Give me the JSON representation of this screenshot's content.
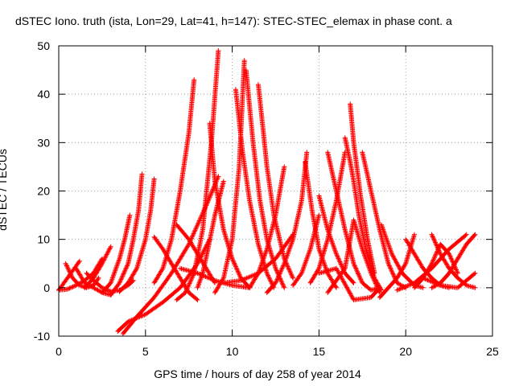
{
  "chart_data": {
    "type": "scatter",
    "title": "dSTEC Iono. truth (ista, Lon=29, Lat=41, h=147): STEC-STEC_elemax in phase cont. a",
    "xlabel": "GPS time / hours of day 258 of year 2014",
    "ylabel": "dSTEC  / TECUs",
    "xlim": [
      0,
      25
    ],
    "ylim": [
      -10,
      50
    ],
    "xticks": [
      "0",
      "5",
      "10",
      "15",
      "20",
      "25"
    ],
    "yticks": [
      "-10",
      "0",
      "10",
      "20",
      "30",
      "40",
      "50"
    ],
    "grid": true,
    "marker": "+",
    "color": "#ff0000",
    "arcs": [
      {
        "x": [
          0.0,
          0.3,
          0.6,
          0.9,
          1.2
        ],
        "y": [
          -0.5,
          1,
          2.5,
          4,
          5.5
        ]
      },
      {
        "x": [
          0.0,
          0.5,
          1.0,
          1.5,
          2.0,
          2.5
        ],
        "y": [
          -0.5,
          -0.3,
          0.5,
          1.5,
          3,
          6
        ]
      },
      {
        "x": [
          0.4,
          0.8,
          1.2,
          1.6,
          2.0,
          2.3
        ],
        "y": [
          5,
          2,
          0.5,
          0,
          0.5,
          2
        ]
      },
      {
        "x": [
          1.0,
          1.5,
          2.0,
          2.5,
          3.0
        ],
        "y": [
          4,
          1,
          0,
          -1,
          -1.5
        ]
      },
      {
        "x": [
          1.5,
          2.0,
          2.5,
          3.0
        ],
        "y": [
          0,
          2,
          5,
          8.5
        ]
      },
      {
        "x": [
          1.6,
          2.0,
          2.5,
          3.0,
          3.5,
          4.0,
          4.3
        ],
        "y": [
          3,
          1.5,
          0,
          -0.8,
          -0.5,
          0.5,
          1.5
        ]
      },
      {
        "x": [
          2.5,
          3.0,
          3.5,
          3.8,
          4.1
        ],
        "y": [
          -1,
          1,
          6,
          10,
          15
        ]
      },
      {
        "x": [
          3.0,
          3.5,
          4.0,
          4.3,
          4.6,
          4.8
        ],
        "y": [
          -1.5,
          1,
          5,
          10,
          16,
          23.5
        ]
      },
      {
        "x": [
          3.5,
          4.0,
          4.5,
          5.0,
          5.3,
          5.5
        ],
        "y": [
          -0.8,
          1,
          4,
          10,
          16,
          22.5
        ]
      },
      {
        "x": [
          3.4,
          4.0,
          5.0,
          6.0,
          7.0,
          8.0,
          8.7
        ],
        "y": [
          -9,
          -7,
          -5.5,
          -3,
          0,
          5,
          10
        ]
      },
      {
        "x": [
          3.7,
          4.5,
          5.5,
          6.5,
          7.5,
          8.5,
          9.2
        ],
        "y": [
          -9.5,
          -6,
          -2,
          3,
          9,
          17,
          23
        ]
      },
      {
        "x": [
          5.5,
          6.0,
          6.5,
          7.0,
          7.5,
          7.8
        ],
        "y": [
          1,
          4,
          10,
          20,
          32,
          43
        ]
      },
      {
        "x": [
          5.5,
          6.0,
          7.0,
          7.5,
          8.0
        ],
        "y": [
          10.5,
          8,
          2,
          -1,
          -2.5
        ]
      },
      {
        "x": [
          6.8,
          7.3,
          7.8,
          8.3,
          8.8,
          9.2
        ],
        "y": [
          -2.5,
          -1,
          3,
          12,
          30,
          49
        ]
      },
      {
        "x": [
          6.8,
          7.5,
          8.0,
          8.5,
          9.0
        ],
        "y": [
          13,
          10,
          7,
          4,
          1
        ]
      },
      {
        "x": [
          7.0,
          8.0,
          9.0,
          10.0,
          11.0
        ],
        "y": [
          4,
          3,
          1.5,
          0.5,
          0
        ]
      },
      {
        "x": [
          8.7,
          9.0,
          9.5,
          10.0,
          10.5,
          11.0
        ],
        "y": [
          34,
          22,
          12,
          6,
          2,
          0
        ]
      },
      {
        "x": [
          8.0,
          8.3,
          8.6,
          9.0,
          9.5
        ],
        "y": [
          0,
          3,
          8,
          15,
          22
        ]
      },
      {
        "x": [
          9.0,
          9.5,
          10.0,
          10.4,
          10.7
        ],
        "y": [
          -1,
          2,
          10,
          25,
          47
        ]
      },
      {
        "x": [
          10.8,
          11.2,
          11.6,
          12.0,
          12.5,
          13.0
        ],
        "y": [
          45,
          30,
          18,
          10,
          4,
          0
        ]
      },
      {
        "x": [
          10.2,
          10.6,
          11.0,
          11.5,
          12.0,
          12.4
        ],
        "y": [
          41,
          28,
          18,
          9,
          3,
          0
        ]
      },
      {
        "x": [
          11.5,
          11.8,
          12.0,
          12.4,
          13.0,
          13.5
        ],
        "y": [
          42,
          32,
          25,
          15,
          6,
          2
        ]
      },
      {
        "x": [
          9.5,
          10.5,
          11.5,
          12.5,
          13.5
        ],
        "y": [
          1,
          1.5,
          3,
          6,
          11
        ]
      },
      {
        "x": [
          11.0,
          11.5,
          12.0,
          12.5,
          13.0
        ],
        "y": [
          0,
          3,
          8,
          15,
          25
        ]
      },
      {
        "x": [
          12.0,
          12.5,
          13.0,
          13.5,
          14.0,
          14.3
        ],
        "y": [
          -1,
          1,
          5,
          10,
          18,
          28
        ]
      },
      {
        "x": [
          14.2,
          14.6,
          15.0,
          15.5,
          16.0
        ],
        "y": [
          26,
          16,
          8,
          3,
          0
        ]
      },
      {
        "x": [
          13.5,
          14.0,
          14.5,
          15.0
        ],
        "y": [
          0.5,
          3,
          8,
          15
        ]
      },
      {
        "x": [
          14.5,
          15.0,
          15.5,
          16.0,
          16.5
        ],
        "y": [
          1,
          4,
          10,
          18,
          28
        ]
      },
      {
        "x": [
          15.0,
          15.5,
          16.0,
          16.5,
          17.0
        ],
        "y": [
          19,
          12,
          7,
          3,
          1
        ]
      },
      {
        "x": [
          15.5,
          16.0,
          16.5,
          17.0,
          17.5,
          18.0,
          18.5
        ],
        "y": [
          28,
          20,
          12,
          5,
          1,
          -0.5,
          0
        ]
      },
      {
        "x": [
          16.5,
          16.8,
          17.0,
          17.3,
          17.7,
          18.2,
          18.6
        ],
        "y": [
          31,
          26,
          22,
          15,
          8,
          2,
          -0.5
        ]
      },
      {
        "x": [
          16.8,
          17.0,
          17.4,
          17.8,
          18.2
        ],
        "y": [
          38,
          30,
          19,
          10,
          3
        ]
      },
      {
        "x": [
          17.5,
          18.0,
          18.5,
          19.0,
          19.5,
          20.0
        ],
        "y": [
          28,
          20,
          12,
          5,
          1,
          0
        ]
      },
      {
        "x": [
          15.5,
          16.5,
          17.0,
          17.5,
          18.0,
          18.5
        ],
        "y": [
          -1,
          4,
          14,
          8,
          3,
          -1
        ]
      },
      {
        "x": [
          15.0,
          16.0,
          17.0,
          18.0,
          18.5
        ],
        "y": [
          3,
          4,
          -2.5,
          -2,
          0
        ]
      },
      {
        "x": [
          18.5,
          19.0,
          19.5,
          20.0,
          20.5
        ],
        "y": [
          -2,
          0,
          2,
          5,
          11
        ]
      },
      {
        "x": [
          18.6,
          19.2,
          19.8,
          20.5,
          21.0
        ],
        "y": [
          13,
          7,
          3,
          0.5,
          0
        ]
      },
      {
        "x": [
          20.0,
          20.5,
          21.0,
          21.5,
          22.0,
          22.5
        ],
        "y": [
          10,
          7,
          4,
          2,
          0.5,
          0
        ]
      },
      {
        "x": [
          20.5,
          21.0,
          21.5,
          22.0,
          22.5,
          23.0
        ],
        "y": [
          0,
          2,
          5,
          9,
          7,
          3
        ]
      },
      {
        "x": [
          21.5,
          22.0,
          22.5,
          23.0,
          23.5,
          24.0
        ],
        "y": [
          11,
          7,
          4,
          2,
          0.5,
          0
        ]
      },
      {
        "x": [
          21.5,
          22.0,
          22.5,
          23.0,
          23.5,
          24.0
        ],
        "y": [
          0,
          1,
          3,
          6,
          9,
          11
        ]
      },
      {
        "x": [
          21.0,
          22.0,
          23.0,
          24.0
        ],
        "y": [
          2,
          0.5,
          0,
          3
        ]
      },
      {
        "x": [
          19.5,
          20.5,
          21.5,
          22.5,
          23.5
        ],
        "y": [
          -0.5,
          1,
          4,
          8,
          11
        ]
      }
    ]
  }
}
